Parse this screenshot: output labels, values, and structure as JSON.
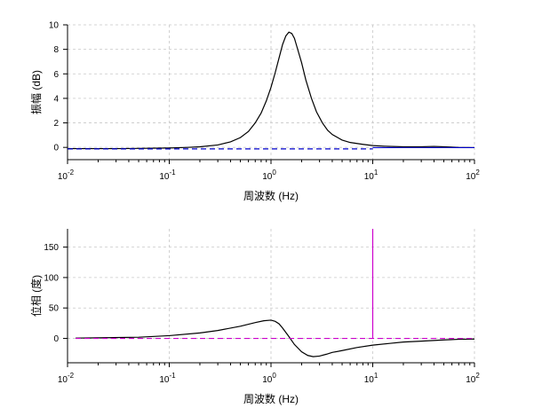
{
  "chart_data": [
    {
      "type": "line",
      "ylabel": "振幅 (dB)",
      "xlabel": "周波数 (Hz)",
      "xscale": "log",
      "xlim": [
        0.01,
        100
      ],
      "ylim": [
        -1,
        10
      ],
      "grid": true,
      "xticks": [
        {
          "base": "10",
          "exp": "-2"
        },
        {
          "base": "10",
          "exp": "-1"
        },
        {
          "base": "10",
          "exp": "0"
        },
        {
          "base": "10",
          "exp": "1"
        },
        {
          "base": "10",
          "exp": "2"
        }
      ],
      "yticks": [
        "0",
        "2",
        "4",
        "6",
        "8",
        "10"
      ],
      "series": [
        {
          "style": "solid",
          "color": "#000000",
          "x": [
            0.01,
            0.03,
            0.05,
            0.08,
            0.1,
            0.15,
            0.2,
            0.3,
            0.4,
            0.5,
            0.6,
            0.7,
            0.8,
            0.9,
            1.0,
            1.1,
            1.2,
            1.3,
            1.4,
            1.5,
            1.6,
            1.7,
            1.8,
            2.0,
            2.2,
            2.5,
            2.8,
            3.2,
            3.6,
            4.0,
            5.0,
            6.0,
            8.0,
            10,
            13,
            20,
            30,
            40,
            50,
            70,
            100
          ],
          "y": [
            -0.1,
            -0.1,
            -0.08,
            -0.06,
            -0.05,
            0.0,
            0.05,
            0.2,
            0.45,
            0.8,
            1.3,
            2.0,
            2.8,
            3.8,
            4.9,
            6.1,
            7.3,
            8.4,
            9.1,
            9.4,
            9.3,
            8.9,
            8.2,
            6.9,
            5.5,
            4.0,
            2.9,
            2.0,
            1.4,
            1.05,
            0.6,
            0.4,
            0.25,
            0.15,
            0.1,
            0.05,
            0.05,
            0.08,
            0.05,
            0.0,
            -0.02
          ]
        },
        {
          "style": "dashed",
          "color": "#0000cc",
          "x": [
            0.01,
            10
          ],
          "y": [
            -0.12,
            -0.12
          ]
        },
        {
          "style": "solid",
          "color": "#0000cc",
          "x": [
            10,
            100
          ],
          "y": [
            -0.02,
            -0.02
          ]
        }
      ]
    },
    {
      "type": "line",
      "ylabel": "位相 (度)",
      "xlabel": "周波数 (Hz)",
      "xscale": "log",
      "xlim": [
        0.01,
        100
      ],
      "ylim": [
        -40,
        180
      ],
      "grid": true,
      "xticks": [
        {
          "base": "10",
          "exp": "-2"
        },
        {
          "base": "10",
          "exp": "-1"
        },
        {
          "base": "10",
          "exp": "0"
        },
        {
          "base": "10",
          "exp": "1"
        },
        {
          "base": "10",
          "exp": "2"
        }
      ],
      "yticks": [
        "0",
        "50",
        "100",
        "150"
      ],
      "series": [
        {
          "style": "solid",
          "color": "#000000",
          "x": [
            0.012,
            0.02,
            0.05,
            0.1,
            0.2,
            0.3,
            0.5,
            0.7,
            0.85,
            1.0,
            1.1,
            1.2,
            1.3,
            1.5,
            1.7,
            2.0,
            2.3,
            2.6,
            3.0,
            3.5,
            4.0,
            5.0,
            7.0,
            10,
            15,
            20,
            30,
            50,
            70,
            100
          ],
          "y": [
            0.5,
            1.0,
            2.0,
            4.5,
            9.0,
            13.0,
            20.0,
            26.0,
            29.0,
            30.0,
            28.0,
            24.0,
            17.0,
            3.0,
            -10.0,
            -22.0,
            -28.0,
            -30.0,
            -29.0,
            -26.0,
            -23.0,
            -20.0,
            -15.0,
            -11.0,
            -8.0,
            -6.0,
            -4.5,
            -2.5,
            -1.5,
            -1.0
          ]
        },
        {
          "style": "dashed",
          "color": "#cc00cc",
          "x": [
            0.012,
            100
          ],
          "y": [
            0,
            0
          ]
        },
        {
          "style": "solid",
          "color": "#cc00cc",
          "x": [
            10,
            10
          ],
          "y": [
            0,
            180
          ]
        }
      ]
    }
  ]
}
